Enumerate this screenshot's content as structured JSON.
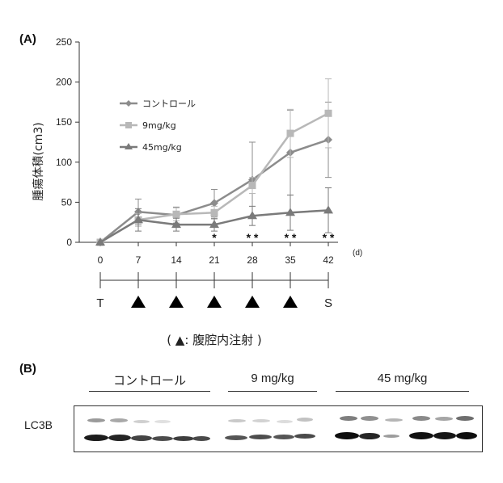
{
  "panel_a_label": "(A)",
  "panel_b_label": "(B)",
  "chart_data": {
    "type": "line",
    "ylabel": "腫瘍体積(cm3)",
    "xunit": "(d)",
    "x": [
      0,
      7,
      14,
      21,
      28,
      35,
      42
    ],
    "xticks": [
      "0",
      "7",
      "14",
      "21",
      "28",
      "35",
      "42"
    ],
    "ylim": [
      0,
      250
    ],
    "yticks": [
      0,
      50,
      100,
      150,
      200,
      250
    ],
    "grid": false,
    "legend_position": "upper-left inside",
    "series": [
      {
        "name": "コントロール",
        "color": "#8c8c8c",
        "marker": "diamond",
        "values": [
          0,
          38,
          34,
          49,
          78,
          112,
          128
        ],
        "err": [
          0,
          16,
          10,
          17,
          47,
          53,
          47
        ]
      },
      {
        "name": "9mg/kg",
        "color": "#b8b8b8",
        "marker": "square",
        "values": [
          0,
          28,
          35,
          37,
          71,
          136,
          161
        ],
        "err": [
          0,
          8,
          8,
          8,
          10,
          30,
          43
        ]
      },
      {
        "name": "45mg/kg",
        "color": "#7a7a7a",
        "marker": "triangle",
        "values": [
          0,
          28,
          22,
          22,
          33,
          37,
          40
        ],
        "err": [
          0,
          14,
          8,
          8,
          12,
          22,
          28
        ]
      }
    ],
    "significance": [
      {
        "x": 21,
        "label": "*"
      },
      {
        "x": 28,
        "label": "* *"
      },
      {
        "x": 35,
        "label": "* *"
      },
      {
        "x": 42,
        "label": "* *"
      }
    ]
  },
  "timeline": {
    "start_label": "T",
    "end_label": "S",
    "injection_days": [
      7,
      14,
      21,
      28,
      35
    ],
    "caption": "( ▲: 腹腔内注射 )"
  },
  "western_blot": {
    "row_label": "LC3B",
    "groups": [
      "コントロール",
      "9 mg/kg",
      "45 mg/kg"
    ]
  }
}
